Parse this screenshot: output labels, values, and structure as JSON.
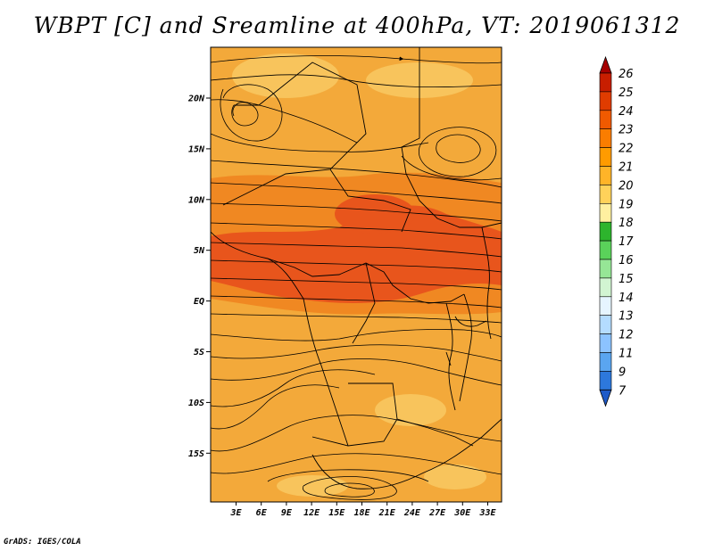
{
  "title": "WBPT [C] and Sreamline at 400hPa, VT: 2019061312",
  "credit": "GrADS: IGES/COLA",
  "lat_labels": [
    "20N",
    "15N",
    "10N",
    "5N",
    "EQ",
    "5S",
    "10S",
    "15S"
  ],
  "lon_labels": [
    "3E",
    "6E",
    "9E",
    "12E",
    "15E",
    "18E",
    "21E",
    "24E",
    "27E",
    "30E",
    "33E"
  ],
  "colorbar": {
    "labels": [
      "26",
      "25",
      "24",
      "23",
      "22",
      "21",
      "20",
      "19",
      "18",
      "17",
      "16",
      "15",
      "14",
      "13",
      "12",
      "11",
      "9",
      "7"
    ],
    "colors": [
      "#a50000",
      "#c81e00",
      "#e03c00",
      "#f05a00",
      "#fa7d00",
      "#ff9b00",
      "#ffb428",
      "#ffd25a",
      "#fff0a0",
      "#2db42d",
      "#5ad25a",
      "#96e696",
      "#d2f5d2",
      "#e6f5ff",
      "#b4dcff",
      "#8cc3ff",
      "#5aa5f0",
      "#2d78dc",
      "#1e5ac8"
    ]
  },
  "map": {
    "base_color": "#f3a93a",
    "warm_color": "#f08822",
    "hot_color": "#e8551c",
    "cool_color": "#f8c45c"
  }
}
